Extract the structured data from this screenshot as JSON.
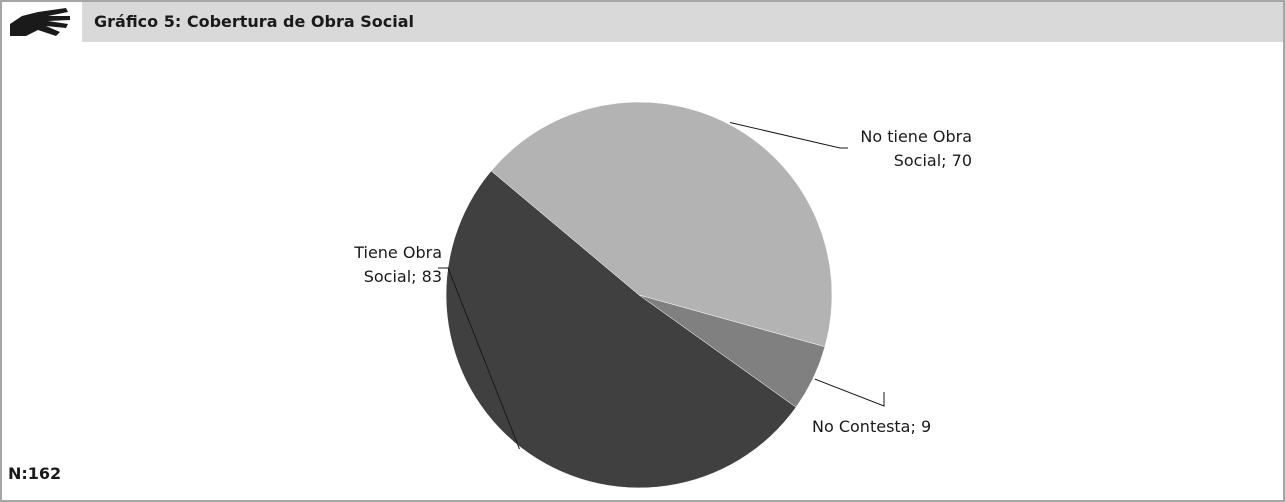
{
  "header": {
    "title": "Gráfico 5: Cobertura de Obra Social",
    "logo_icon": "hand-icon"
  },
  "footnote": "N:162",
  "colors": {
    "header_bg": "#d9d9d9",
    "border": "#a6a6a6",
    "slice_dark": "#404040",
    "slice_light": "#b3b3b3",
    "slice_mid": "#808080"
  },
  "chart_data": {
    "type": "pie",
    "title": "Gráfico 5: Cobertura de Obra Social",
    "slices": [
      {
        "name": "No tiene Obra Social",
        "value": 70,
        "label_lines": [
          "No tiene Obra",
          "Social; 70"
        ],
        "color": "#b3b3b3"
      },
      {
        "name": "No Contesta",
        "value": 9,
        "label_lines": [
          "No Contesta; 9"
        ],
        "color": "#808080"
      },
      {
        "name": "Tiene Obra Social",
        "value": 83,
        "label_lines": [
          "Tiene Obra",
          "Social; 83"
        ],
        "color": "#404040"
      }
    ]
  }
}
